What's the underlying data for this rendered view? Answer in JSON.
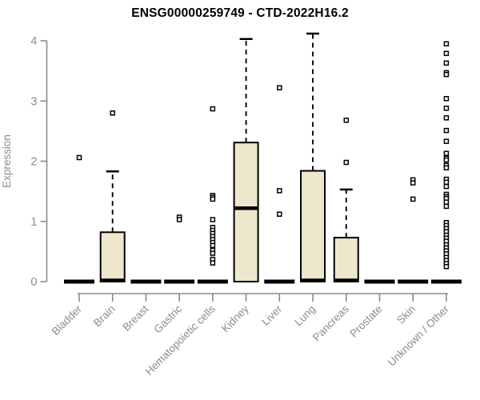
{
  "page": {
    "background": "#ffffff"
  },
  "chart_data": {
    "type": "boxplot",
    "title": "ENSG00000259749 - CTD-2022H16.2",
    "ylabel": "Expression",
    "xlabel": "",
    "ylim": [
      0,
      4.15
    ],
    "yticks": [
      "0",
      "1",
      "2",
      "3",
      "4"
    ],
    "grid": false,
    "legend": null,
    "colors": {
      "box_fill": "#EDE8CD",
      "box_stroke": "#000000",
      "axis_line": "#8A8A8A",
      "axis_text": "#8C8C8C",
      "title_text": "#000000"
    },
    "categories": [
      "Bladder",
      "Brain",
      "Breast",
      "Gastric",
      "Hematopoietic cells",
      "Kidney",
      "Liver",
      "Lung",
      "Pancreas",
      "Prostate",
      "Skin",
      "Unknown / Other"
    ],
    "boxes": [
      {
        "category": "Bladder",
        "q1": 0,
        "median": 0,
        "q3": 0,
        "whisker_low": 0,
        "whisker_high": 0,
        "outliers": [
          2.06
        ]
      },
      {
        "category": "Brain",
        "q1": 0,
        "median": 0.02,
        "q3": 0.82,
        "whisker_low": 0,
        "whisker_high": 1.83,
        "outliers": [
          2.8
        ]
      },
      {
        "category": "Breast",
        "q1": 0,
        "median": 0,
        "q3": 0,
        "whisker_low": 0,
        "whisker_high": 0,
        "outliers": []
      },
      {
        "category": "Gastric",
        "q1": 0,
        "median": 0,
        "q3": 0,
        "whisker_low": 0,
        "whisker_high": 0,
        "outliers": [
          1.07,
          1.03
        ]
      },
      {
        "category": "Hematopoietic cells",
        "q1": 0,
        "median": 0,
        "q3": 0,
        "whisker_low": 0,
        "whisker_high": 0,
        "outliers": [
          2.87,
          1.43,
          1.4,
          1.37,
          1.03,
          0.9,
          0.85,
          0.8,
          0.75,
          0.7,
          0.65,
          0.6,
          0.52,
          0.47,
          0.37,
          0.31
        ]
      },
      {
        "category": "Kidney",
        "q1": 0,
        "median": 1.22,
        "q3": 2.31,
        "whisker_low": 0,
        "whisker_high": 4.03,
        "outliers": []
      },
      {
        "category": "Liver",
        "q1": 0,
        "median": 0,
        "q3": 0,
        "whisker_low": 0,
        "whisker_high": 0,
        "outliers": [
          3.22,
          1.51,
          1.12
        ]
      },
      {
        "category": "Lung",
        "q1": 0,
        "median": 0.02,
        "q3": 1.84,
        "whisker_low": 0,
        "whisker_high": 4.12,
        "outliers": []
      },
      {
        "category": "Pancreas",
        "q1": 0,
        "median": 0.02,
        "q3": 0.73,
        "whisker_low": 0,
        "whisker_high": 1.53,
        "outliers": [
          2.68,
          1.98
        ]
      },
      {
        "category": "Prostate",
        "q1": 0,
        "median": 0,
        "q3": 0,
        "whisker_low": 0,
        "whisker_high": 0,
        "outliers": []
      },
      {
        "category": "Skin",
        "q1": 0,
        "median": 0,
        "q3": 0,
        "whisker_low": 0,
        "whisker_high": 0,
        "outliers": [
          1.69,
          1.64,
          1.37
        ]
      },
      {
        "category": "Unknown / Other",
        "q1": 0,
        "median": 0,
        "q3": 0,
        "whisker_low": 0,
        "whisker_high": 0,
        "outliers": [
          3.95,
          3.79,
          3.63,
          3.47,
          3.44,
          3.04,
          2.88,
          2.72,
          2.51,
          2.33,
          2.13,
          2.05,
          2.02,
          1.93,
          1.89,
          1.7,
          1.65,
          1.58,
          1.45,
          1.41,
          1.38,
          1.32,
          1.25,
          0.98,
          0.93,
          0.88,
          0.83,
          0.77,
          0.72,
          0.67,
          0.61,
          0.56,
          0.51,
          0.46,
          0.4,
          0.35,
          0.3,
          0.25
        ]
      }
    ]
  }
}
